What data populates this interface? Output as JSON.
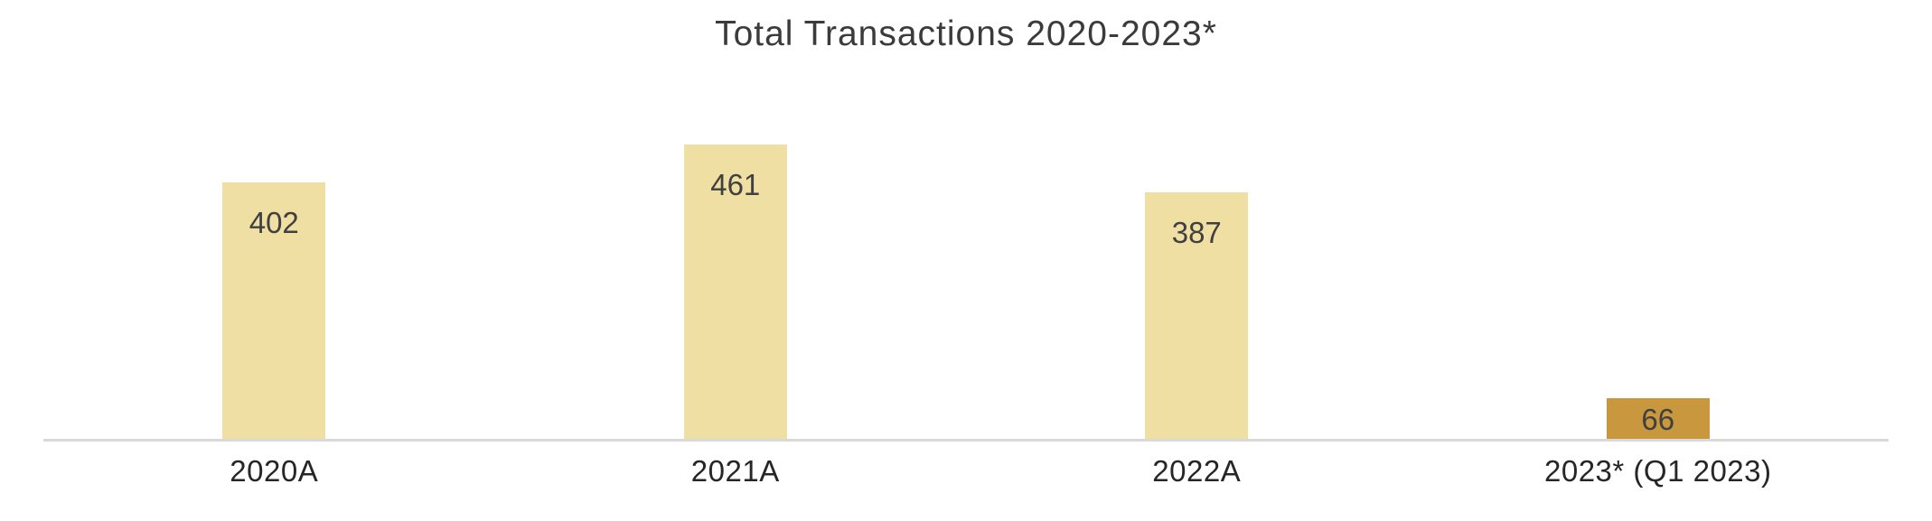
{
  "chart_data": {
    "type": "bar",
    "title": "Total Transactions 2020-2023*",
    "categories": [
      "2020A",
      "2021A",
      "2022A",
      "2023* (Q1 2023)"
    ],
    "values": [
      402,
      461,
      387,
      66
    ],
    "series": [
      {
        "name": "Total Transactions",
        "values": [
          402,
          461,
          387,
          66
        ]
      }
    ],
    "data_labels": [
      "402",
      "461",
      "387",
      "66"
    ],
    "data_labels_position": "inside-end",
    "xlabel": "",
    "ylabel": "",
    "ylim": [
      0,
      500
    ],
    "grid": false,
    "legend": false,
    "colors": {
      "bar_default": "#EFDFA2",
      "bar_highlight": "#C8973E",
      "bar_colors": [
        "#EFDFA2",
        "#EFDFA2",
        "#EFDFA2",
        "#C8973E"
      ],
      "data_label": "#404040",
      "axis_label": "#262626",
      "title": "#3B3B3B",
      "axis_line": "#D9D9D9",
      "background": "#FFFFFF"
    }
  }
}
